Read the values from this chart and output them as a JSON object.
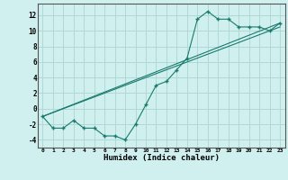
{
  "bg_color": "#cff0ee",
  "grid_color": "#b0d8d4",
  "line_color": "#1a7a6e",
  "xlabel": "Humidex (Indice chaleur)",
  "xlim": [
    -0.5,
    23.5
  ],
  "ylim": [
    -5,
    13.5
  ],
  "yticks": [
    -4,
    -2,
    0,
    2,
    4,
    6,
    8,
    10,
    12
  ],
  "xticks": [
    0,
    1,
    2,
    3,
    4,
    5,
    6,
    7,
    8,
    9,
    10,
    11,
    12,
    13,
    14,
    15,
    16,
    17,
    18,
    19,
    20,
    21,
    22,
    23
  ],
  "series1_x": [
    0,
    1,
    2,
    3,
    4,
    5,
    6,
    7,
    8,
    9,
    10,
    11,
    12,
    13,
    14,
    15,
    16,
    17,
    18,
    19,
    20,
    21,
    22,
    23
  ],
  "series1_y": [
    -1,
    -2.5,
    -2.5,
    -1.5,
    -2.5,
    -2.5,
    -3.5,
    -3.5,
    -4,
    -2,
    0.5,
    3,
    3.5,
    5,
    6.5,
    11.5,
    12.5,
    11.5,
    11.5,
    10.5,
    10.5,
    10.5,
    10,
    11
  ],
  "series2_x": [
    0,
    23
  ],
  "series2_y": [
    -1,
    11
  ],
  "series3_x": [
    0,
    23
  ],
  "series3_y": [
    -1,
    10.5
  ]
}
